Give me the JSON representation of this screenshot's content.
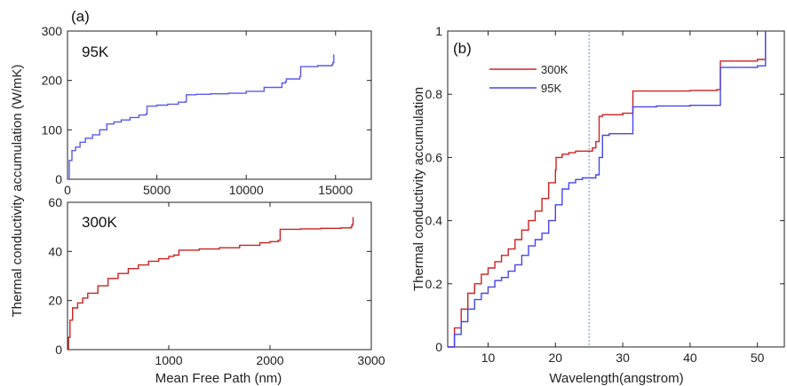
{
  "chart_data": [
    {
      "type": "line",
      "panel_label": "(a)",
      "annotation": "95K",
      "ylabel": "Thermal conductivity accumulation (W/mK)",
      "xlim": [
        0,
        17000
      ],
      "ylim": [
        0,
        300
      ],
      "xticks": [
        0,
        5000,
        10000,
        15000
      ],
      "yticks": [
        0,
        100,
        200,
        300
      ],
      "color": "#5a5aee",
      "series": [
        {
          "x": [
            0,
            100,
            250,
            450,
            700,
            1000,
            1400,
            1800,
            2200,
            2600,
            3000,
            3500,
            4000,
            4400,
            4450,
            5000,
            5600,
            6200,
            6600,
            6650,
            7200,
            8000,
            9000,
            10000,
            11000,
            12000,
            12200,
            12250,
            13000,
            13050,
            14000,
            14800,
            14850,
            14900
          ],
          "y": [
            0,
            38,
            58,
            65,
            75,
            83,
            90,
            100,
            112,
            116,
            120,
            125,
            130,
            132,
            148,
            150,
            152,
            156,
            157,
            171,
            172,
            173,
            174,
            178,
            186,
            195,
            198,
            203,
            208,
            228,
            230,
            232,
            236,
            253
          ]
        }
      ]
    },
    {
      "type": "line",
      "annotation": "300K",
      "xlabel": "Mean Free Path (nm)",
      "xlim": [
        0,
        3000
      ],
      "ylim": [
        0,
        60
      ],
      "xticks": [
        1000,
        2000,
        3000
      ],
      "yticks": [
        0,
        20,
        40,
        60
      ],
      "color": "#cc2222",
      "series": [
        {
          "x": [
            0,
            10,
            25,
            50,
            100,
            150,
            200,
            300,
            400,
            500,
            600,
            700,
            800,
            900,
            1000,
            1050,
            1100,
            1300,
            1500,
            1700,
            1900,
            2000,
            2080,
            2100,
            2300,
            2500,
            2700,
            2800,
            2810,
            2820
          ],
          "y": [
            0,
            5,
            12,
            17,
            19,
            21,
            23,
            26,
            29,
            31,
            33,
            34.5,
            36,
            37,
            38,
            38.5,
            40.5,
            41,
            41.5,
            42.5,
            43.5,
            44,
            44.5,
            49,
            49.2,
            49.4,
            49.6,
            50,
            51,
            54
          ]
        }
      ]
    },
    {
      "type": "line",
      "panel_label": "(b)",
      "xlabel": "Wavelength(angstrom)",
      "ylabel": "Thermal conductivity accumulation",
      "xlim": [
        4,
        54
      ],
      "ylim": [
        0,
        1
      ],
      "xticks": [
        10,
        20,
        30,
        40,
        50
      ],
      "yticks": [
        0,
        0.2,
        0.4,
        0.6,
        0.8,
        1
      ],
      "ytick_labels": [
        "0",
        "0.2",
        "0.4",
        "0.6",
        "0.8",
        "1"
      ],
      "vline_x": 25,
      "legend_position": "top-left",
      "series": [
        {
          "name": "300K",
          "color": "#cc2222",
          "x": [
            4,
            5,
            6,
            7,
            8,
            9,
            10,
            11,
            12,
            13,
            14,
            15,
            16,
            17,
            18,
            19,
            20,
            20.1,
            21,
            22,
            23,
            24,
            25,
            25.5,
            26,
            26.5,
            27,
            28,
            30,
            31,
            31.5,
            35,
            40,
            44,
            44.5,
            50,
            51,
            51.2
          ],
          "y": [
            0,
            0.06,
            0.12,
            0.17,
            0.2,
            0.23,
            0.25,
            0.27,
            0.29,
            0.31,
            0.34,
            0.37,
            0.4,
            0.43,
            0.47,
            0.52,
            0.56,
            0.6,
            0.61,
            0.615,
            0.62,
            0.62,
            0.62,
            0.63,
            0.65,
            0.73,
            0.735,
            0.735,
            0.74,
            0.74,
            0.81,
            0.81,
            0.812,
            0.815,
            0.905,
            0.91,
            0.91,
            1.0
          ]
        },
        {
          "name": "95K",
          "color": "#4545ee",
          "x": [
            4,
            5,
            6,
            7,
            8,
            9,
            10,
            11,
            12,
            13,
            14,
            15,
            16,
            17,
            18,
            19,
            20,
            21,
            22,
            23,
            24,
            25,
            26,
            26.5,
            27,
            28,
            30,
            31,
            31.5,
            35,
            40,
            44,
            44.5,
            50,
            51,
            51.2
          ],
          "y": [
            0,
            0.04,
            0.08,
            0.12,
            0.15,
            0.17,
            0.19,
            0.21,
            0.22,
            0.24,
            0.26,
            0.29,
            0.32,
            0.34,
            0.36,
            0.4,
            0.45,
            0.5,
            0.52,
            0.53,
            0.535,
            0.535,
            0.545,
            0.6,
            0.67,
            0.675,
            0.675,
            0.675,
            0.76,
            0.763,
            0.765,
            0.765,
            0.885,
            0.89,
            0.89,
            1.0
          ]
        }
      ]
    }
  ]
}
